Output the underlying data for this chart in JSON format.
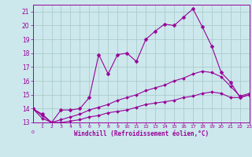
{
  "xlabel": "Windchill (Refroidissement éolien,°C)",
  "background_color": "#cce8ec",
  "grid_color": "#aacccc",
  "line_color": "#990099",
  "xlim": [
    0,
    23
  ],
  "ylim": [
    13,
    21.5
  ],
  "xticks": [
    1,
    2,
    3,
    4,
    5,
    6,
    7,
    8,
    9,
    10,
    11,
    12,
    13,
    14,
    15,
    16,
    17,
    18,
    19,
    20,
    21,
    22,
    23
  ],
  "yticks": [
    13,
    14,
    15,
    16,
    17,
    18,
    19,
    20,
    21
  ],
  "series1_x": [
    0,
    1,
    2,
    3,
    4,
    5,
    6,
    7,
    8,
    9,
    10,
    11,
    12,
    13,
    14,
    15,
    16,
    17,
    18,
    19,
    20,
    21,
    22,
    23
  ],
  "series1_y": [
    14.0,
    13.6,
    13.0,
    13.9,
    13.9,
    14.0,
    14.8,
    17.9,
    16.5,
    17.9,
    18.0,
    17.4,
    19.0,
    19.6,
    20.1,
    20.0,
    20.6,
    21.2,
    19.9,
    18.5,
    16.6,
    15.9,
    14.8,
    15.0
  ],
  "series2_x": [
    0,
    1,
    2,
    3,
    4,
    5,
    6,
    7,
    8,
    9,
    10,
    11,
    12,
    13,
    14,
    15,
    16,
    17,
    18,
    19,
    20,
    21,
    22,
    23
  ],
  "series2_y": [
    14.0,
    13.5,
    13.0,
    13.2,
    13.4,
    13.6,
    13.9,
    14.1,
    14.3,
    14.6,
    14.8,
    15.0,
    15.3,
    15.5,
    15.7,
    16.0,
    16.2,
    16.5,
    16.7,
    16.6,
    16.3,
    15.6,
    14.9,
    15.1
  ],
  "series3_x": [
    0,
    1,
    2,
    3,
    4,
    5,
    6,
    7,
    8,
    9,
    10,
    11,
    12,
    13,
    14,
    15,
    16,
    17,
    18,
    19,
    20,
    21,
    22,
    23
  ],
  "series3_y": [
    14.0,
    13.3,
    13.0,
    13.0,
    13.1,
    13.2,
    13.4,
    13.5,
    13.7,
    13.8,
    13.9,
    14.1,
    14.3,
    14.4,
    14.5,
    14.6,
    14.8,
    14.9,
    15.1,
    15.2,
    15.1,
    14.8,
    14.8,
    15.0
  ]
}
